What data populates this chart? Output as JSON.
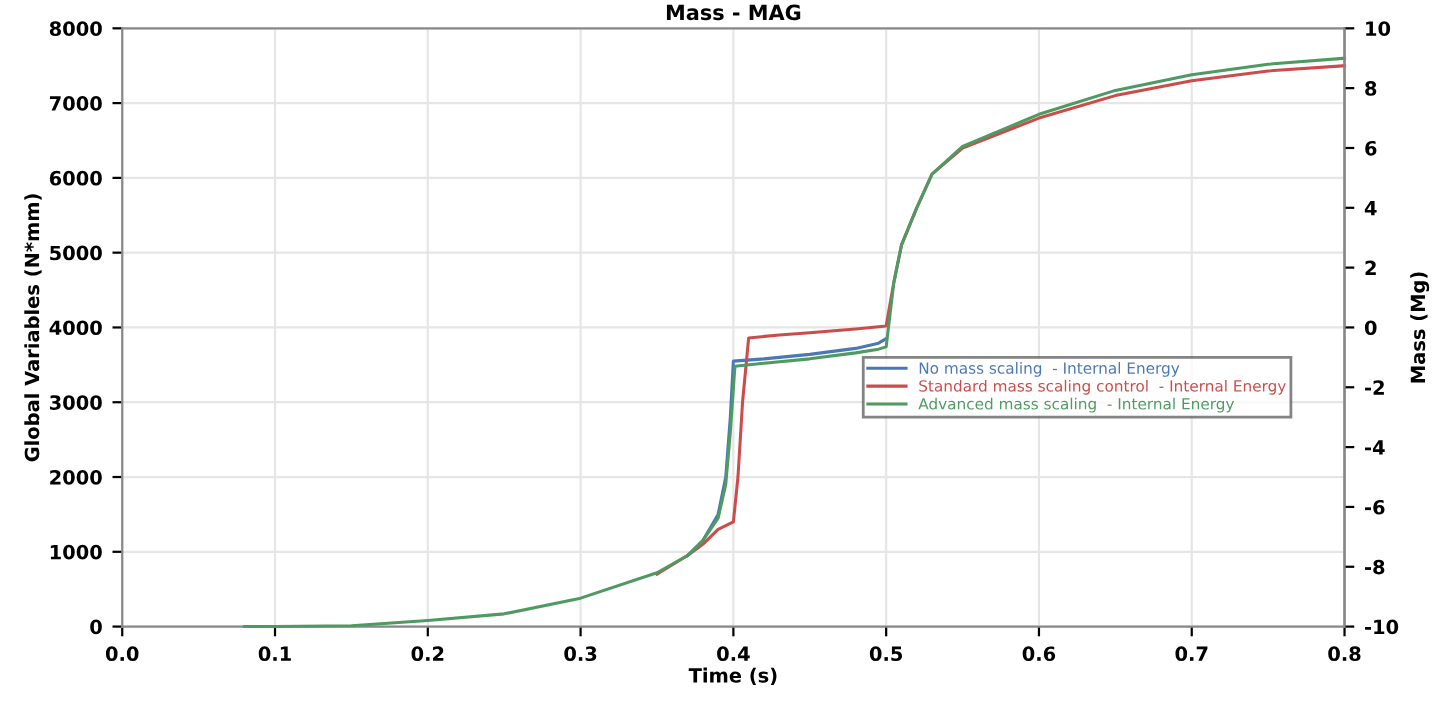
{
  "chart_data": {
    "type": "line",
    "title": "Mass - MAG",
    "xlabel": "Time (s)",
    "ylabel": "Global Variables (N*mm)",
    "y2label": "Mass (Mg)",
    "xlim": [
      0,
      0.8
    ],
    "xticks": [
      {
        "value": 0,
        "label": "0.0"
      },
      0.1,
      0.2,
      0.3,
      0.4,
      0.5,
      0.6,
      0.7,
      0.8
    ],
    "ylim": [
      0,
      8000
    ],
    "yticks": [
      0,
      1000,
      2000,
      3000,
      4000,
      5000,
      6000,
      7000,
      8000
    ],
    "y2lim": [
      -10,
      10
    ],
    "y2ticks": [
      -10,
      -8,
      -6,
      -4,
      -2,
      0,
      2,
      4,
      6,
      8,
      10
    ],
    "grid": true,
    "legend": "center",
    "line_style": "solid",
    "marker": "none",
    "series": [
      {
        "name": "No mass scaling  - Internal Energy",
        "color": "#4a78b5",
        "x": [
          0.37,
          0.38,
          0.39,
          0.395,
          0.398,
          0.4,
          0.42,
          0.45,
          0.48,
          0.495,
          0.5
        ],
        "values": [
          950,
          1150,
          1500,
          2000,
          2800,
          3550,
          3580,
          3640,
          3720,
          3790,
          3850
        ]
      },
      {
        "name": "Standard mass scaling control  - Internal Energy",
        "color": "#cc4c4c",
        "x": [
          0.35,
          0.37,
          0.38,
          0.39,
          0.4,
          0.403,
          0.406,
          0.41,
          0.43,
          0.45,
          0.48,
          0.495,
          0.5,
          0.505,
          0.51,
          0.52,
          0.53,
          0.55,
          0.6,
          0.65,
          0.7,
          0.75,
          0.8
        ],
        "values": [
          700,
          950,
          1100,
          1300,
          1400,
          2000,
          3000,
          3860,
          3900,
          3930,
          3980,
          4010,
          4020,
          4600,
          5100,
          5600,
          6050,
          6400,
          6800,
          7100,
          7300,
          7430,
          7500
        ]
      },
      {
        "name": "Advanced mass scaling  - Internal Energy",
        "color": "#4f9a62",
        "x": [
          0.08,
          0.1,
          0.15,
          0.2,
          0.25,
          0.3,
          0.35,
          0.37,
          0.38,
          0.39,
          0.395,
          0.398,
          0.401,
          0.42,
          0.45,
          0.48,
          0.495,
          0.5,
          0.505,
          0.51,
          0.52,
          0.53,
          0.55,
          0.6,
          0.65,
          0.7,
          0.75,
          0.8
        ],
        "values": [
          0,
          0,
          10,
          80,
          170,
          380,
          720,
          950,
          1150,
          1450,
          1900,
          2600,
          3480,
          3520,
          3580,
          3660,
          3710,
          3740,
          4600,
          5100,
          5600,
          6050,
          6420,
          6850,
          7170,
          7380,
          7520,
          7600
        ]
      }
    ]
  }
}
